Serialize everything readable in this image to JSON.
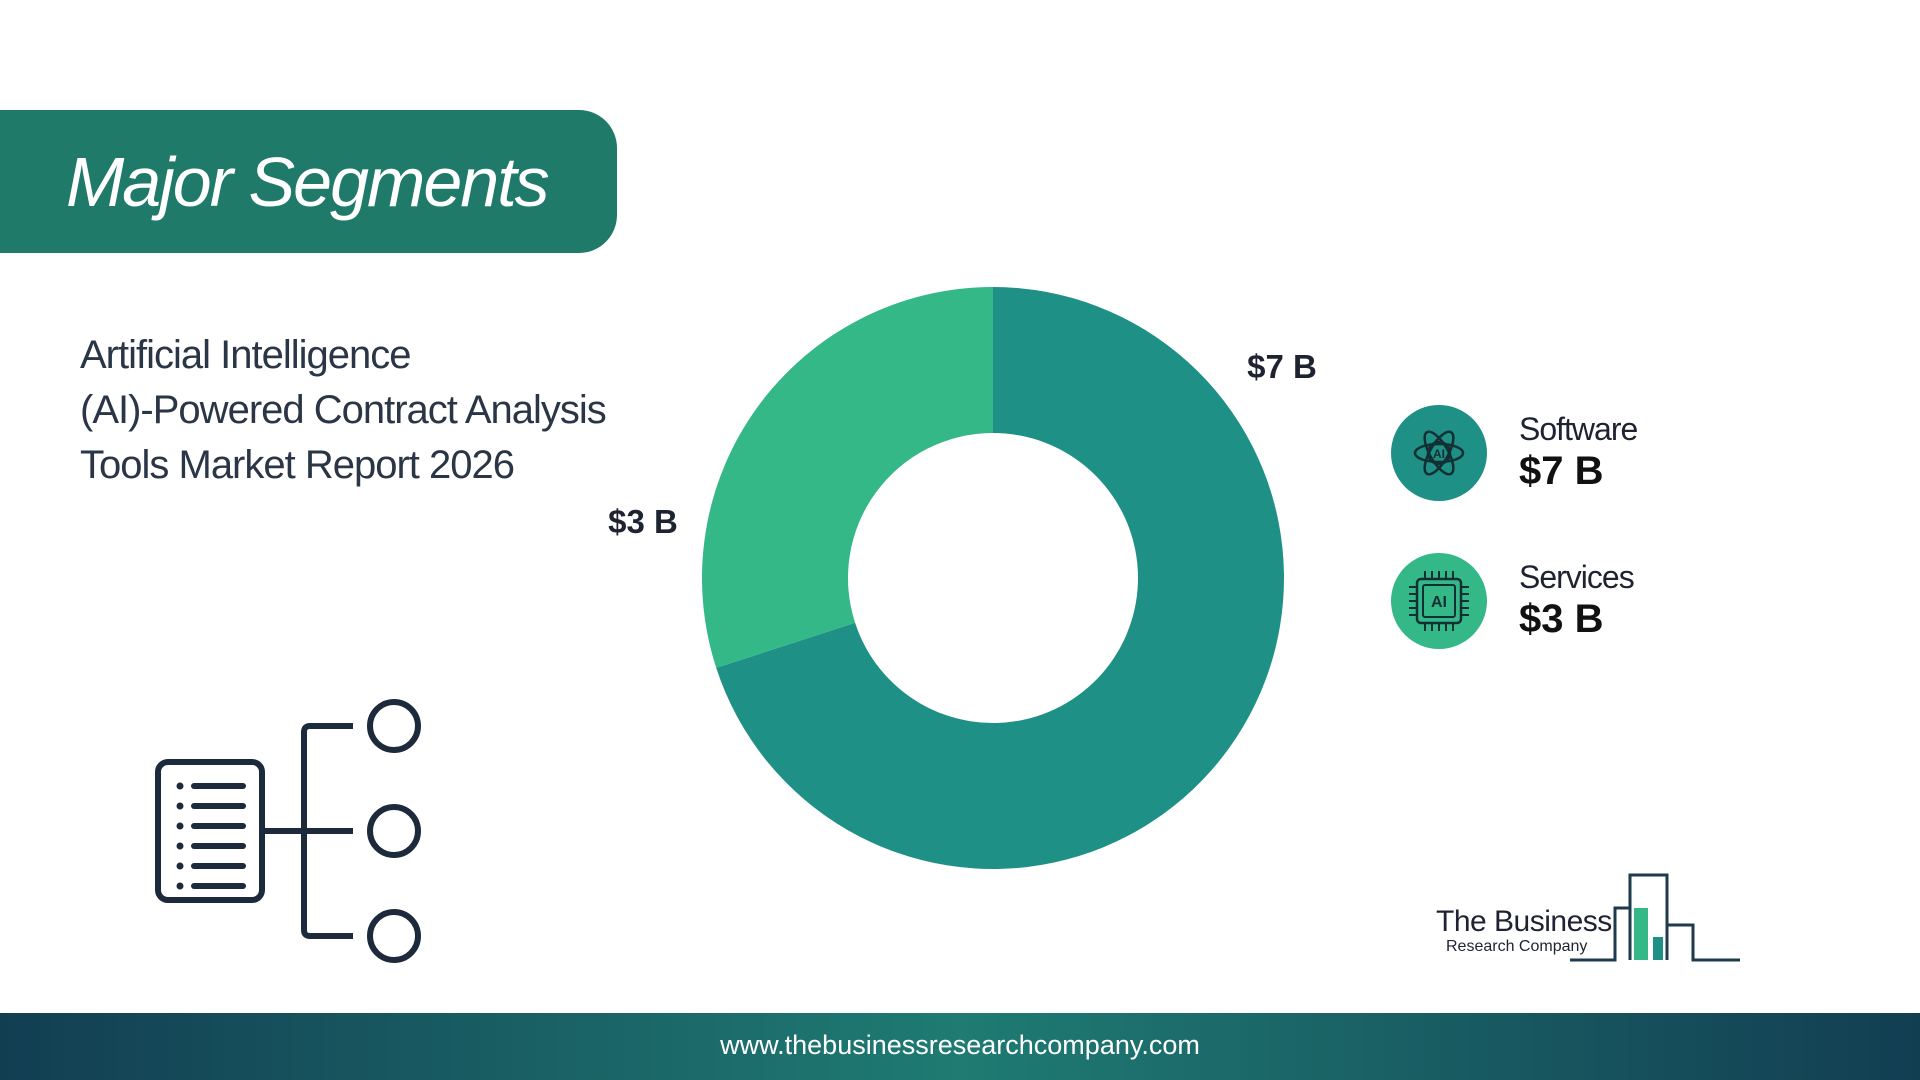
{
  "header": {
    "title": "Major Segments"
  },
  "report": {
    "title_lines": [
      "Artificial Intelligence",
      "(AI)-Powered Contract Analysis",
      "Tools Market Report 2026"
    ]
  },
  "chart_data": {
    "type": "pie",
    "donut": true,
    "categories": [
      "Software",
      "Services"
    ],
    "values": [
      7,
      3
    ],
    "unit": "$B",
    "data_labels": [
      "$7 B",
      "$3 B"
    ],
    "colors": [
      "#1e9085",
      "#35b887"
    ],
    "legend_position": "right"
  },
  "legend": {
    "items": [
      {
        "name": "Software",
        "value": "$7 B",
        "icon": "ai-atom-icon",
        "color": "#1e9085"
      },
      {
        "name": "Services",
        "value": "$3 B",
        "icon": "ai-chip-icon",
        "color": "#35b887"
      }
    ]
  },
  "logo": {
    "line1": "The Business",
    "line2": "Research Company",
    "colors": [
      "#1e3a4d",
      "#35b887"
    ]
  },
  "footer": {
    "url": "www.thebusinessresearchcompany.com"
  }
}
